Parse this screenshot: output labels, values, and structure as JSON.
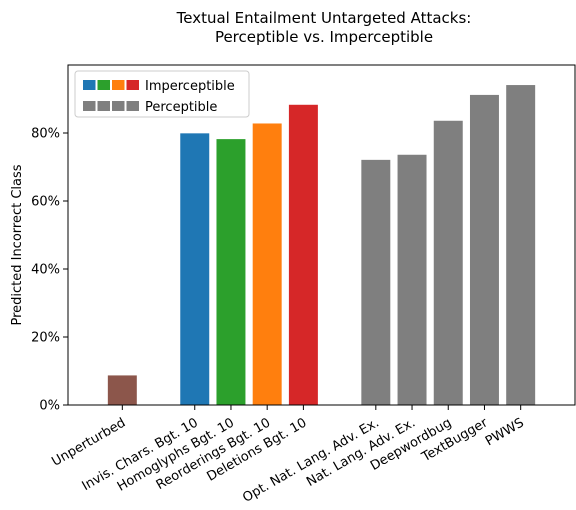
{
  "chart_data": {
    "type": "bar",
    "title_lines": [
      "Textual Entailment Untargeted Attacks:",
      "Perceptible vs. Imperceptible"
    ],
    "ylabel": "Predicted Incorrect Class",
    "ylim": [
      0,
      100
    ],
    "yticks": [
      0,
      20,
      40,
      60,
      80
    ],
    "ytick_labels": [
      "0%",
      "20%",
      "40%",
      "60%",
      "80%"
    ],
    "categories": [
      "Unperturbed",
      "Invis. Chars. Bgt. 10",
      "Homoglyphs Bgt. 10",
      "Reorderings Bgt. 10",
      "Deletions Bgt. 10",
      "Opt. Nat. Lang. Adv. Ex.",
      "Nat. Lang. Adv. Ex.",
      "Deepwordbug",
      "TextBugger",
      "PWWS"
    ],
    "values": [
      8.7,
      79.9,
      78.2,
      82.8,
      88.3,
      72.1,
      73.6,
      83.6,
      91.2,
      94.1
    ],
    "colors": [
      "#8c564b",
      "#1f77b4",
      "#2ca02c",
      "#ff7f0e",
      "#d62728",
      "#7f7f7f",
      "#7f7f7f",
      "#7f7f7f",
      "#7f7f7f",
      "#7f7f7f"
    ],
    "legend": {
      "position": "upper-left",
      "entries": [
        {
          "label": "Imperceptible",
          "colors": [
            "#1f77b4",
            "#2ca02c",
            "#ff7f0e",
            "#d62728"
          ]
        },
        {
          "label": "Perceptible",
          "colors": [
            "#7f7f7f",
            "#7f7f7f",
            "#7f7f7f",
            "#7f7f7f"
          ]
        }
      ]
    },
    "grid": false
  }
}
